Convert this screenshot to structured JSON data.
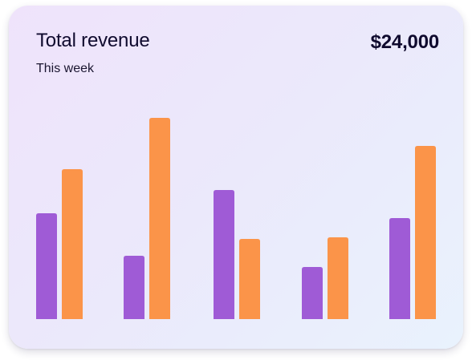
{
  "card": {
    "title": "Total revenue",
    "subtitle": "This week",
    "total": "$24,000"
  },
  "colors": {
    "series_a": "#9f5bd6",
    "series_b": "#fb9449"
  },
  "chart_data": {
    "type": "bar",
    "categories": [
      "",
      "",
      "",
      "",
      ""
    ],
    "series": [
      {
        "values": [
          132,
          79,
          161,
          65,
          126
        ]
      },
      {
        "values": [
          187,
          251,
          100,
          102,
          216
        ]
      }
    ],
    "ylim": [
      0,
      260
    ],
    "grid": false
  }
}
